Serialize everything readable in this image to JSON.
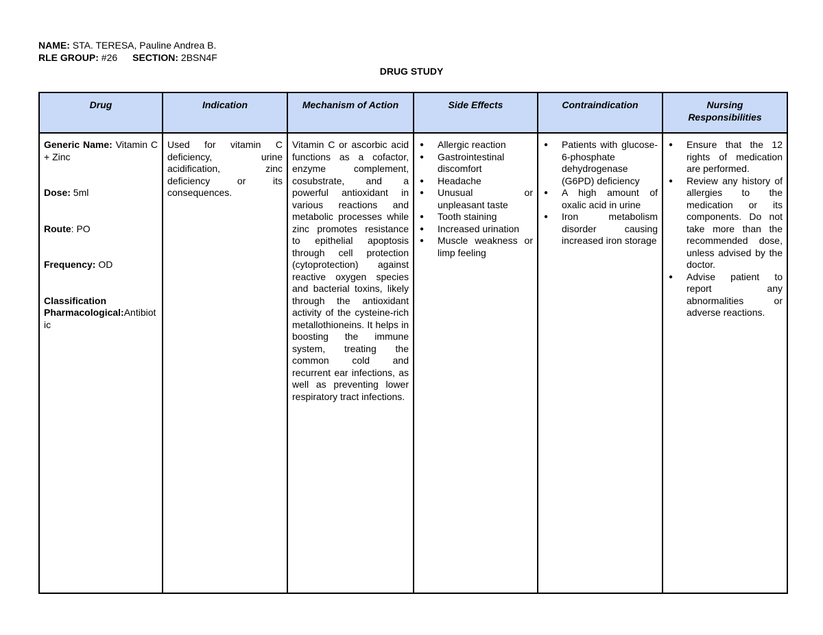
{
  "header": {
    "name_label": "NAME:",
    "name_value": " STA. TERESA, Pauline Andrea B.",
    "group_label": "RLE GROUP:",
    "group_value": " #26",
    "section_label": "SECTION:",
    "section_value": " 2BSN4F",
    "title": "DRUG STUDY"
  },
  "table": {
    "columns": [
      "Drug",
      "Indication",
      "Mechanism of Action",
      "Side Effects",
      "Contraindication",
      "Nursing Responsibilities"
    ],
    "drug": {
      "generic_label": "Generic Name:",
      "generic_value": " Vitamin C + Zinc",
      "dose_label": "Dose:",
      "dose_value": " 5ml",
      "route_label": "Route",
      "route_value": ": PO",
      "frequency_label": "Frequency:",
      "frequency_value": " OD",
      "class_label": "Classification",
      "pharm_label": "Pharmacological:",
      "pharm_value": "Antibiotic"
    },
    "indication": "Used for vitamin C deficiency, urine acidification, zinc deficiency or its consequences.",
    "mechanism": "Vitamin C or ascorbic acid functions as a cofactor, enzyme complement, cosubstrate, and a powerful antioxidant in various reactions and metabolic processes while zinc promotes resistance to epithelial apoptosis through cell protection (cytoprotection) against reactive oxygen species and bacterial toxins, likely through the antioxidant activity of the cysteine-rich metallothioneins. It helps in boosting the immune system, treating the common cold and recurrent ear infections, as well as preventing lower respiratory tract infections.",
    "side_effects": [
      "Allergic reaction",
      "Gastrointestinal discomfort",
      "Headache",
      "Unusual or unpleasant taste",
      "Tooth staining",
      "Increased urination",
      "Muscle weakness or limp feeling"
    ],
    "contraindications": [
      "Patients with glucose-6-phos­phate dehydrogenase (G6PD) deficiency",
      "A high amount of oxalic acid in urine",
      "Iron metabolism disorder causing increased iron storage"
    ],
    "nursing": [
      "Ensure that the 12 rights of medication are performed.",
      "Review any history of allergies to the medication or its components. Do not take more than the recommended dose, unless advised by the doctor.",
      "Advise patient to report any abnormalities or adverse reactions."
    ]
  },
  "colors": {
    "header_fill": "#c9daf8"
  }
}
